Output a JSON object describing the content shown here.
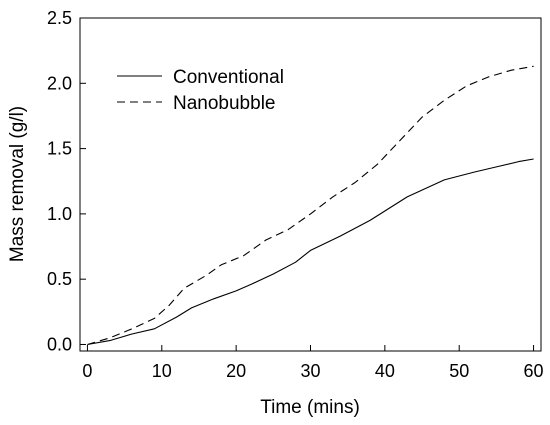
{
  "chart_data": {
    "type": "line",
    "title": "",
    "xlabel": "Time (mins)",
    "ylabel": "Mass removal (g/l)",
    "xlim": [
      -1,
      61
    ],
    "ylim": [
      -0.05,
      2.5
    ],
    "xticks": [
      0,
      10,
      20,
      30,
      40,
      50,
      60
    ],
    "xtick_labels": [
      "0",
      "10",
      "20",
      "30",
      "40",
      "50",
      "60"
    ],
    "yticks": [
      0.0,
      0.5,
      1.0,
      1.5,
      2.0,
      2.5
    ],
    "ytick_labels": [
      "0.0",
      "0.5",
      "1.0",
      "1.5",
      "2.0",
      "2.5"
    ],
    "grid": false,
    "legend_position": "top-left",
    "series": [
      {
        "name": "Conventional",
        "line_style": "solid",
        "color": "#000000",
        "x": [
          0,
          3,
          6,
          9,
          12,
          14,
          17,
          20,
          22,
          25,
          28,
          30,
          34,
          38,
          43,
          48,
          52,
          55,
          58,
          60
        ],
        "y": [
          0.0,
          0.03,
          0.08,
          0.12,
          0.21,
          0.28,
          0.35,
          0.41,
          0.46,
          0.54,
          0.63,
          0.72,
          0.83,
          0.95,
          1.13,
          1.26,
          1.32,
          1.36,
          1.4,
          1.42
        ]
      },
      {
        "name": "Nanobubble",
        "line_style": "dashed",
        "color": "#000000",
        "x": [
          0,
          3,
          6,
          9,
          11,
          13,
          16,
          18,
          21,
          24,
          27,
          30,
          33,
          36,
          39,
          42,
          45,
          48,
          51,
          54,
          57,
          60
        ],
        "y": [
          0.0,
          0.05,
          0.12,
          0.2,
          0.3,
          0.43,
          0.53,
          0.61,
          0.68,
          0.8,
          0.88,
          1.0,
          1.13,
          1.24,
          1.38,
          1.56,
          1.74,
          1.87,
          1.98,
          2.05,
          2.1,
          2.13
        ]
      }
    ]
  }
}
